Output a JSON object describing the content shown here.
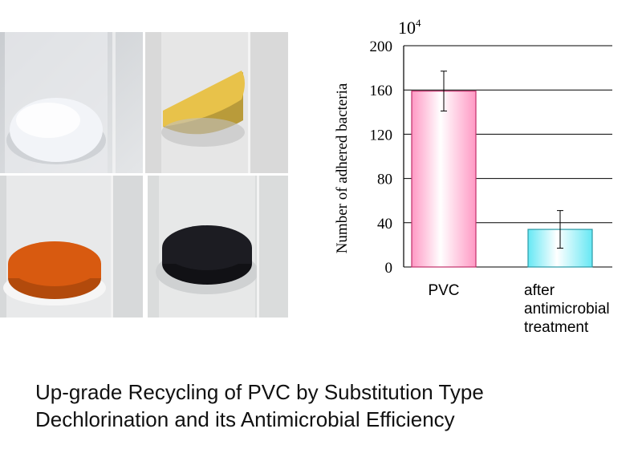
{
  "photos": [
    {
      "label": "white-pvc-powder",
      "powder_color": "#f2f4f8"
    },
    {
      "label": "yellow-powder",
      "powder_color": "#e8c24a"
    },
    {
      "label": "orange-powder",
      "powder_color": "#d85a10"
    },
    {
      "label": "black-powder",
      "powder_color": "#1c1c22"
    }
  ],
  "chart_data": {
    "type": "bar",
    "categories": [
      "PVC",
      "after\nantimicrobial\ntreatment"
    ],
    "values": [
      159,
      34
    ],
    "errors": [
      18,
      17
    ],
    "bar_colors": [
      "#ff99c4",
      "#66e8f4"
    ],
    "ylabel": "Number of adhered bacteria",
    "ylim": [
      0,
      200
    ],
    "yticks": [
      0,
      40,
      80,
      120,
      160,
      200
    ],
    "grid": true,
    "multiplier_label": {
      "base": "10",
      "exp": "4"
    }
  },
  "caption": {
    "line1": "Up-grade Recycling of PVC by Substitution Type",
    "line2": "Dechlorination and its Antimicrobial Efficiency"
  }
}
